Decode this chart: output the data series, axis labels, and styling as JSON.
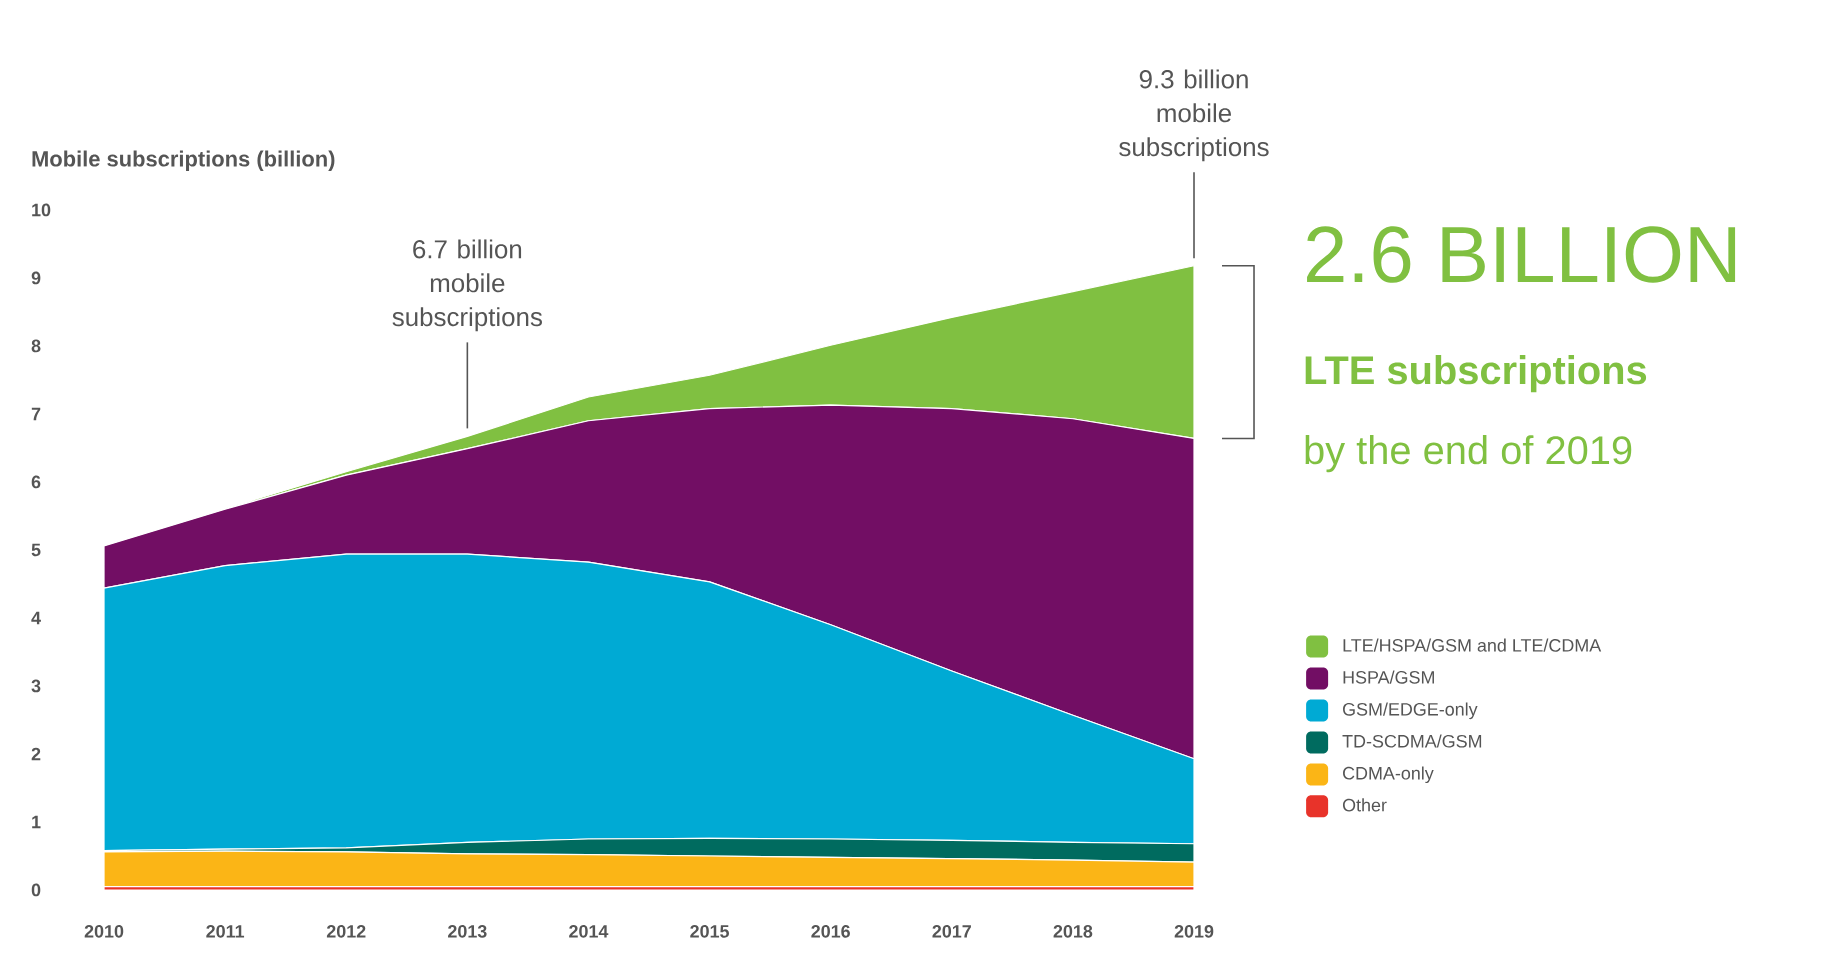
{
  "chart_data": {
    "type": "area",
    "stacked": true,
    "ylabel": "Mobile subscriptions (billion)",
    "x": [
      2010,
      2011,
      2012,
      2013,
      2014,
      2015,
      2016,
      2017,
      2018,
      2019
    ],
    "xlim": [
      2010,
      2019
    ],
    "xticks": [
      2010,
      2011,
      2012,
      2013,
      2014,
      2015,
      2016,
      2017,
      2018,
      2019
    ],
    "ylim": [
      0,
      10
    ],
    "yticks": [
      0,
      1,
      2,
      3,
      4,
      5,
      6,
      7,
      8,
      9,
      10
    ],
    "legend": "right",
    "series": [
      {
        "name": "Other",
        "color": "#e8332a",
        "values": [
          0.05,
          0.05,
          0.05,
          0.05,
          0.05,
          0.05,
          0.05,
          0.05,
          0.05,
          0.05
        ]
      },
      {
        "name": "CDMA-only",
        "color": "#fbb516",
        "values": [
          0.51,
          0.52,
          0.51,
          0.48,
          0.47,
          0.45,
          0.43,
          0.41,
          0.39,
          0.36
        ]
      },
      {
        "name": "TD-SCDMA/GSM",
        "color": "#006b5f",
        "values": [
          0.02,
          0.03,
          0.06,
          0.17,
          0.23,
          0.26,
          0.27,
          0.27,
          0.26,
          0.27
        ]
      },
      {
        "name": "GSM/EDGE-only",
        "color": "#00aad4",
        "values": [
          3.86,
          4.17,
          4.32,
          4.24,
          4.07,
          3.77,
          3.15,
          2.49,
          1.87,
          1.25
        ]
      },
      {
        "name": "HSPA/GSM",
        "color": "#720e64",
        "values": [
          0.62,
          0.83,
          1.16,
          1.55,
          2.08,
          2.55,
          3.23,
          3.86,
          4.36,
          4.71
        ]
      },
      {
        "name": "LTE/HSPA/GSM and LTE/CDMA",
        "color": "#80c041",
        "values": [
          0,
          0.01,
          0.05,
          0.18,
          0.35,
          0.49,
          0.88,
          1.34,
          1.87,
          2.54
        ]
      }
    ],
    "annotations": [
      {
        "text": "6.7 billion mobile subscriptions",
        "x": 2013,
        "y": 6.7
      },
      {
        "text": "9.3 billion mobile subscriptions",
        "x": 2019,
        "y": 9.2
      },
      "2.6 BILLION",
      "LTE subscriptions",
      "by the end of 2019"
    ]
  }
}
